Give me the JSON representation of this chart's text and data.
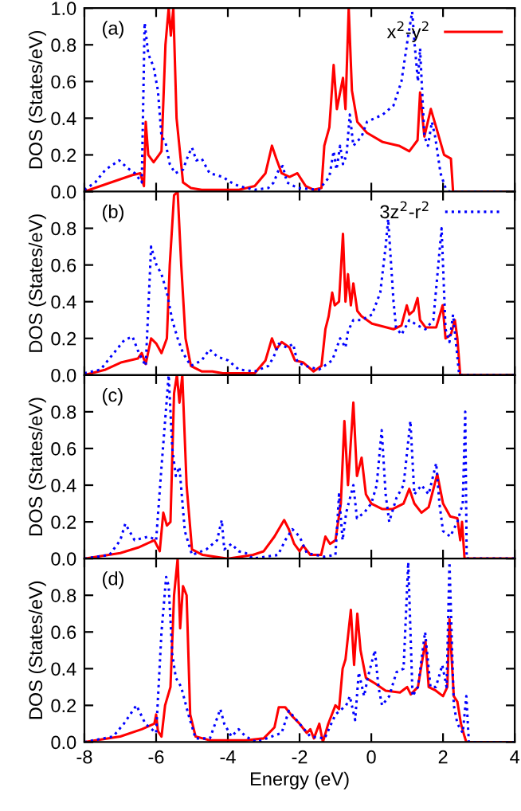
{
  "chart_data": [
    {
      "type": "line",
      "xlim": [
        -8,
        4
      ],
      "xticks": [
        -8,
        -6,
        -4,
        -2,
        0,
        2,
        4
      ],
      "ylim": [
        0,
        1.0
      ],
      "yticks": [
        {
          "value": 0,
          "label": "0.0"
        },
        {
          "value": 0.2,
          "label": "0.2"
        },
        {
          "value": 0.4,
          "label": "0.4"
        },
        {
          "value": 0.6,
          "label": "0.6"
        },
        {
          "value": 0.8,
          "label": "0.8"
        },
        {
          "value": 1.0,
          "label": "1.0"
        }
      ],
      "ylabel": "DOS (States/eV)",
      "annotations": [
        "(a)"
      ],
      "tick_labels": "y",
      "grid": false,
      "legend": "top right",
      "marker": "none",
      "series": [
        {
          "name": "x$^{2}$-y$^{2}$",
          "color": "#ff0000",
          "line_style": "solid",
          "x": [
            -8.0,
            -7.26,
            -6.66,
            -6.44,
            -6.34,
            -6.29,
            -6.22,
            -6.07,
            -5.92,
            -5.85,
            -5.74,
            -5.65,
            -5.59,
            -5.52,
            -5.43,
            -5.25,
            -5.03,
            -4.73,
            -3.69,
            -3.25,
            -2.95,
            -2.77,
            -2.65,
            -2.5,
            -2.28,
            -2.06,
            -1.83,
            -1.61,
            -1.39,
            -1.31,
            -1.17,
            -1.05,
            -0.96,
            -0.79,
            -0.72,
            -0.63,
            -0.54,
            -0.39,
            -0.12,
            0.32,
            0.77,
            1.06,
            1.29,
            1.36,
            1.48,
            1.66,
            1.81,
            2.03,
            2.22,
            2.28,
            4.0
          ],
          "values": [
            0,
            0.05,
            0.09,
            0.1,
            0.03,
            0.38,
            0.2,
            0.16,
            0.2,
            0.22,
            0.8,
            1.0,
            0.85,
            1.0,
            0.4,
            0.05,
            0.02,
            0.01,
            0.01,
            0.03,
            0.1,
            0.25,
            0.18,
            0.1,
            0.08,
            0.1,
            0.03,
            0.01,
            0.02,
            0.25,
            0.35,
            0.69,
            0.45,
            0.62,
            0.45,
            1.0,
            0.55,
            0.38,
            0.32,
            0.27,
            0.25,
            0.22,
            0.28,
            0.54,
            0.3,
            0.45,
            0.35,
            0.2,
            0.18,
            0,
            0
          ]
        },
        {
          "color": "#0000ff",
          "line_style": "dotted",
          "x": [
            -8,
            -7.7,
            -7.41,
            -7.03,
            -6.81,
            -6.59,
            -6.4,
            -6.32,
            -6.22,
            -6.07,
            -5.95,
            -5.85,
            -5.74,
            -5.62,
            -5.47,
            -5.25,
            -5.1,
            -5.0,
            -4.88,
            -4.73,
            -4.51,
            -4.14,
            -3.91,
            -3.69,
            -3.25,
            -2.87,
            -2.72,
            -2.58,
            -2.47,
            -2.35,
            -2.06,
            -1.46,
            -1.17,
            -1.05,
            -0.97,
            -0.87,
            -0.79,
            -0.69,
            -0.6,
            -0.5,
            -0.27,
            -0.12,
            0.32,
            0.62,
            0.84,
            1.03,
            1.14,
            1.21,
            1.3,
            1.36,
            1.48,
            1.58,
            1.69,
            1.78,
            1.93,
            2.07,
            2.18,
            4.0
          ],
          "values": [
            0.01,
            0.05,
            0.12,
            0.17,
            0.13,
            0.1,
            0.05,
            0.92,
            0.75,
            0.68,
            0.55,
            0.3,
            0.27,
            0.15,
            0.1,
            0.12,
            0.2,
            0.24,
            0.17,
            0.18,
            0.1,
            0.08,
            0.05,
            0.03,
            0.01,
            0.02,
            0.05,
            0.12,
            0.14,
            0.05,
            0.02,
            0.01,
            0.08,
            0.22,
            0.12,
            0.25,
            0.15,
            0.2,
            0.42,
            0.25,
            0.3,
            0.38,
            0.42,
            0.47,
            0.6,
            0.85,
            0.98,
            0.8,
            0.6,
            0.78,
            0.3,
            0.25,
            0.38,
            0.3,
            0.1,
            0.02,
            0,
            0
          ]
        }
      ]
    },
    {
      "type": "line",
      "xlim": [
        -8,
        4
      ],
      "xticks": [
        -8,
        -6,
        -4,
        -2,
        0,
        2,
        4
      ],
      "ylim": [
        0,
        1.0
      ],
      "yticks": [
        {
          "value": 0,
          "label": "0.0"
        },
        {
          "value": 0.2,
          "label": "0.2"
        },
        {
          "value": 0.4,
          "label": "0.4"
        },
        {
          "value": 0.6,
          "label": "0.6"
        },
        {
          "value": 0.8,
          "label": "0.8"
        },
        {
          "value": 1.0,
          "label": null
        }
      ],
      "ylabel": "DOS (States/eV)",
      "annotations": [
        "(b)"
      ],
      "tick_labels": "y",
      "grid": false,
      "legend": "top right",
      "marker": "none",
      "series": [
        {
          "color": "#ff0000",
          "line_style": "solid",
          "x": [
            -8,
            -7.41,
            -6.96,
            -6.51,
            -6.4,
            -6.29,
            -6.14,
            -5.99,
            -5.85,
            -5.7,
            -5.62,
            -5.5,
            -5.4,
            -5.3,
            -5.18,
            -5.03,
            -4.73,
            -4.43,
            -4.14,
            -3.25,
            -2.95,
            -2.77,
            -2.65,
            -2.5,
            -2.28,
            -2.13,
            -1.91,
            -1.61,
            -1.39,
            -1.28,
            -1.19,
            -1.09,
            -1.02,
            -0.9,
            -0.79,
            -0.72,
            -0.65,
            -0.57,
            -0.5,
            -0.39,
            -0.27,
            0.02,
            0.62,
            0.84,
            0.99,
            1.06,
            1.18,
            1.29,
            1.36,
            1.51,
            1.81,
            1.99,
            2.07,
            2.22,
            2.33,
            2.4,
            2.48,
            4.0
          ],
          "values": [
            0,
            0.03,
            0.07,
            0.09,
            0.12,
            0.06,
            0.2,
            0.17,
            0.12,
            0.2,
            0.6,
            0.98,
            1.0,
            0.6,
            0.2,
            0.05,
            0.02,
            0.02,
            0.01,
            0.01,
            0.08,
            0.2,
            0.14,
            0.18,
            0.15,
            0.08,
            0.07,
            0.02,
            0.05,
            0.25,
            0.32,
            0.45,
            0.38,
            0.4,
            0.77,
            0.4,
            0.55,
            0.38,
            0.5,
            0.35,
            0.32,
            0.28,
            0.25,
            0.27,
            0.38,
            0.33,
            0.35,
            0.42,
            0.3,
            0.26,
            0.26,
            0.38,
            0.2,
            0.22,
            0.3,
            0.2,
            0,
            0
          ]
        },
        {
          "name": "3z$^{2}$-r$^{2}$",
          "color": "#0000ff",
          "line_style": "dotted",
          "x": [
            -8,
            -7.55,
            -7.18,
            -6.89,
            -6.66,
            -6.48,
            -6.29,
            -6.14,
            -5.99,
            -5.85,
            -5.7,
            -5.55,
            -5.4,
            -5.25,
            -5.03,
            -4.73,
            -4.51,
            -4.29,
            -3.99,
            -3.69,
            -3.25,
            -2.87,
            -2.72,
            -2.58,
            -2.35,
            -2.18,
            -2.06,
            -1.83,
            -1.46,
            -1.09,
            -0.87,
            -0.72,
            -0.65,
            -0.5,
            -0.27,
            0.02,
            0.25,
            0.4,
            0.47,
            0.62,
            0.69,
            0.84,
            1.06,
            1.29,
            1.51,
            1.73,
            1.96,
            2.07,
            2.18,
            2.28,
            2.4,
            2.45,
            4.0
          ],
          "values": [
            0.01,
            0.03,
            0.12,
            0.19,
            0.21,
            0.12,
            0.05,
            0.7,
            0.6,
            0.55,
            0.45,
            0.3,
            0.2,
            0.12,
            0.05,
            0.08,
            0.14,
            0.1,
            0.08,
            0.03,
            0.02,
            0.05,
            0.1,
            0.17,
            0.15,
            0.17,
            0.07,
            0.05,
            0.03,
            0.08,
            0.2,
            0.15,
            0.24,
            0.3,
            0.3,
            0.33,
            0.45,
            0.7,
            0.85,
            0.4,
            0.26,
            0.22,
            0.3,
            0.27,
            0.25,
            0.3,
            0.8,
            0.25,
            0.18,
            0.33,
            0.1,
            0,
            0
          ]
        }
      ]
    },
    {
      "type": "line",
      "xlim": [
        -8,
        4
      ],
      "xticks": [
        -8,
        -6,
        -4,
        -2,
        0,
        2,
        4
      ],
      "ylim": [
        0,
        1.0
      ],
      "yticks": [
        {
          "value": 0,
          "label": "0.0"
        },
        {
          "value": 0.2,
          "label": "0.2"
        },
        {
          "value": 0.4,
          "label": "0.4"
        },
        {
          "value": 0.6,
          "label": "0.6"
        },
        {
          "value": 0.8,
          "label": "0.8"
        },
        {
          "value": 1.0,
          "label": null
        }
      ],
      "ylabel": "DOS (States/eV)",
      "annotations": [
        "(c)"
      ],
      "tick_labels": "y",
      "grid": false,
      "marker": "none",
      "series": [
        {
          "color": "#ff0000",
          "line_style": "solid",
          "x": [
            -8,
            -7,
            -6.5,
            -6.05,
            -5.9,
            -5.8,
            -5.7,
            -5.6,
            -5.5,
            -5.42,
            -5.35,
            -5.27,
            -5.15,
            -5,
            -4.7,
            -4,
            -3.3,
            -3,
            -2.7,
            -2.43,
            -2.3,
            -2.15,
            -2,
            -1.9,
            -1.7,
            -1.4,
            -1.28,
            -1.15,
            -1,
            -0.85,
            -0.75,
            -0.65,
            -0.5,
            -0.4,
            -0.27,
            -0.15,
            0,
            0.3,
            0.6,
            0.9,
            1.06,
            1.2,
            1.4,
            1.6,
            1.84,
            2,
            2.2,
            2.4,
            2.48,
            2.53,
            2.6,
            4
          ],
          "values": [
            0,
            0.03,
            0.06,
            0.1,
            0.04,
            0.25,
            0.18,
            0.2,
            0.9,
            1.0,
            0.85,
            1.0,
            0.4,
            0.05,
            0.02,
            0,
            0.02,
            0.04,
            0.12,
            0.21,
            0.16,
            0.08,
            0.04,
            0.07,
            0.02,
            0.02,
            0.12,
            0.08,
            0.1,
            0.3,
            0.75,
            0.4,
            0.85,
            0.45,
            0.55,
            0.35,
            0.3,
            0.27,
            0.27,
            0.3,
            0.38,
            0.3,
            0.25,
            0.28,
            0.46,
            0.3,
            0.23,
            0.22,
            0.1,
            0.2,
            0,
            0
          ]
        },
        {
          "color": "#0000ff",
          "line_style": "dotted",
          "x": [
            -8,
            -7.3,
            -7,
            -6.86,
            -6.6,
            -6.2,
            -6,
            -5.85,
            -5.65,
            -5.55,
            -5.45,
            -5.35,
            -5.2,
            -5,
            -4.6,
            -4.3,
            -4.17,
            -4.1,
            -3.9,
            -3.7,
            -3.5,
            -3.3,
            -2.6,
            -2.4,
            -2.2,
            -2,
            -1.8,
            -1.3,
            -1,
            -0.9,
            -0.8,
            -0.7,
            -0.5,
            -0.4,
            -0.2,
            0,
            0.15,
            0.29,
            0.4,
            0.5,
            0.7,
            0.9,
            1.09,
            1.2,
            1.4,
            1.6,
            1.81,
            1.9,
            2,
            2.2,
            2.4,
            2.55,
            2.62,
            2.66,
            4
          ],
          "values": [
            0,
            0.02,
            0.1,
            0.19,
            0.1,
            0.12,
            0.1,
            0.5,
            1.0,
            0.6,
            0.45,
            0.5,
            0.15,
            0.02,
            0.05,
            0.1,
            0.21,
            0.05,
            0.08,
            0.04,
            0.03,
            0,
            0.02,
            0.1,
            0.16,
            0.12,
            0.03,
            0.01,
            0.02,
            0.35,
            0.1,
            0.25,
            0.4,
            0.22,
            0.25,
            0.3,
            0.4,
            0.7,
            0.35,
            0.2,
            0.33,
            0.4,
            0.75,
            0.35,
            0.4,
            0.35,
            0.52,
            0.3,
            0.15,
            0.12,
            0.2,
            0.3,
            0.8,
            0,
            0
          ]
        }
      ]
    },
    {
      "type": "line",
      "xlim": [
        -8,
        4
      ],
      "xticks": [
        -8,
        -6,
        -4,
        -2,
        0,
        2,
        4
      ],
      "ylim": [
        0,
        1.0
      ],
      "yticks": [
        {
          "value": 0,
          "label": "0.0"
        },
        {
          "value": 0.2,
          "label": "0.2"
        },
        {
          "value": 0.4,
          "label": "0.4"
        },
        {
          "value": 0.6,
          "label": "0.6"
        },
        {
          "value": 0.8,
          "label": "0.8"
        },
        {
          "value": 1.0,
          "label": null
        }
      ],
      "xlabel": "Energy (eV)",
      "ylabel": "DOS (States/eV)",
      "annotations": [
        "(d)"
      ],
      "grid": false,
      "marker": "none",
      "series": [
        {
          "color": "#ff0000",
          "line_style": "solid",
          "x": [
            -8,
            -7,
            -6.4,
            -6.05,
            -6,
            -5.95,
            -5.85,
            -5.75,
            -5.6,
            -5.5,
            -5.4,
            -5.33,
            -5.25,
            -5.15,
            -5.05,
            -4.9,
            -4.5,
            -3.5,
            -3,
            -2.7,
            -2.58,
            -2.4,
            -2.2,
            -2,
            -1.8,
            -1.7,
            -1.6,
            -1.45,
            -1.35,
            -1.2,
            -1,
            -0.9,
            -0.8,
            -0.72,
            -0.57,
            -0.48,
            -0.39,
            -0.3,
            -0.15,
            0.1,
            0.4,
            0.8,
            1,
            1.1,
            1.3,
            1.51,
            1.6,
            1.8,
            2,
            2.12,
            2.18,
            2.3,
            2.4,
            2.5,
            2.6,
            2.65,
            4
          ],
          "values": [
            0,
            0.03,
            0.07,
            0.1,
            0.15,
            0.06,
            0.03,
            0.2,
            0.3,
            0.8,
            1.0,
            0.62,
            0.85,
            0.8,
            0.15,
            0.03,
            0.01,
            0.01,
            0.02,
            0.08,
            0.19,
            0.19,
            0.14,
            0.1,
            0.05,
            0.07,
            0.02,
            0.1,
            0,
            0.1,
            0.2,
            0.18,
            0.4,
            0.45,
            0.72,
            0.42,
            0.7,
            0.5,
            0.35,
            0.32,
            0.28,
            0.27,
            0.3,
            0.26,
            0.3,
            0.55,
            0.3,
            0.28,
            0.25,
            0.3,
            0.67,
            0.25,
            0.22,
            0.1,
            0.03,
            0,
            0
          ]
        },
        {
          "color": "#0000ff",
          "line_style": "dotted",
          "x": [
            -8,
            -7.2,
            -6.9,
            -6.55,
            -6.3,
            -6,
            -5.85,
            -5.72,
            -5.65,
            -5.55,
            -5.45,
            -5.3,
            -5.1,
            -4.9,
            -4.5,
            -4.21,
            -4.1,
            -3.9,
            -3.7,
            -3.5,
            -3.2,
            -2.5,
            -2.3,
            -2,
            -1.7,
            -1.3,
            -1,
            -0.7,
            -0.6,
            -0.45,
            -0.35,
            -0.2,
            -0.1,
            0.1,
            0.2,
            0.3,
            0.5,
            0.7,
            0.9,
            1.03,
            1.15,
            1.3,
            1.5,
            1.65,
            1.8,
            1.98,
            2.1,
            2.18,
            2.3,
            2.4,
            2.55,
            2.65,
            2.72,
            4
          ],
          "values": [
            0,
            0.03,
            0.1,
            0.2,
            0.1,
            0.05,
            0.6,
            0.9,
            0.85,
            0.48,
            0.35,
            0.3,
            0.15,
            0.02,
            0.02,
            0.18,
            0.1,
            0.03,
            0.07,
            0.03,
            0,
            0.05,
            0.17,
            0.1,
            0.03,
            0.02,
            0.15,
            0.2,
            0.25,
            0.12,
            0.38,
            0.25,
            0.35,
            0.5,
            0.3,
            0.2,
            0.25,
            0.38,
            0.4,
            0.98,
            0.25,
            0.3,
            0.6,
            0.3,
            0.3,
            0.42,
            0.3,
            0.98,
            0.2,
            0.1,
            0.05,
            0.25,
            0,
            0
          ]
        }
      ]
    }
  ]
}
